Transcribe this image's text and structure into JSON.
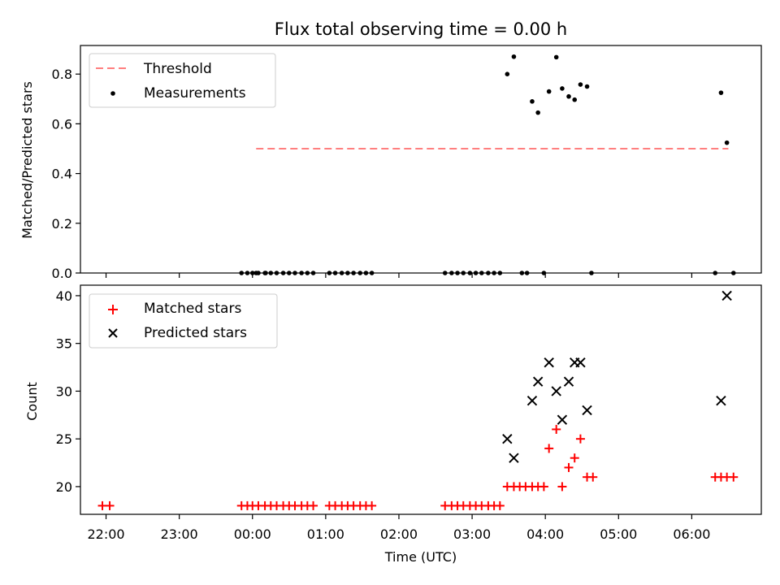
{
  "title": "Flux total observing time = 0.00 h",
  "chart_data": [
    {
      "type": "scatter",
      "ylabel": "Matched/Predicted stars",
      "ylim": [
        0,
        0.915
      ],
      "yticks": [
        "0.0",
        "0.2",
        "0.4",
        "0.6",
        "0.8"
      ],
      "xlim_hours": [
        -2.35,
        6.95
      ],
      "legend_position": "top-left",
      "threshold": {
        "name": "Threshold",
        "value": 0.5,
        "x_range": [
          0.05,
          6.5
        ],
        "color": "#ff7f7f",
        "dashed": true
      },
      "series": [
        {
          "name": "Measurements",
          "color": "#000000",
          "points": [
            [
              0.05,
              0
            ],
            [
              0.18,
              0
            ],
            [
              -0.15,
              0
            ],
            [
              -0.07,
              0
            ],
            [
              0.0,
              0
            ],
            [
              0.08,
              0
            ],
            [
              0.17,
              0
            ],
            [
              0.25,
              0
            ],
            [
              0.33,
              0
            ],
            [
              0.42,
              0
            ],
            [
              0.5,
              0
            ],
            [
              0.58,
              0
            ],
            [
              0.67,
              0
            ],
            [
              0.75,
              0
            ],
            [
              0.83,
              0
            ],
            [
              1.05,
              0
            ],
            [
              1.13,
              0
            ],
            [
              1.22,
              0
            ],
            [
              1.3,
              0
            ],
            [
              1.38,
              0
            ],
            [
              1.47,
              0
            ],
            [
              1.55,
              0
            ],
            [
              1.63,
              0
            ],
            [
              2.63,
              0
            ],
            [
              2.72,
              0
            ],
            [
              2.8,
              0
            ],
            [
              2.88,
              0
            ],
            [
              2.97,
              0
            ],
            [
              3.05,
              0
            ],
            [
              3.13,
              0
            ],
            [
              3.22,
              0
            ],
            [
              3.3,
              0
            ],
            [
              3.38,
              0
            ],
            [
              3.68,
              0
            ],
            [
              3.75,
              0
            ],
            [
              3.98,
              0
            ],
            [
              4.63,
              0
            ],
            [
              6.32,
              0
            ],
            [
              6.57,
              0
            ],
            [
              3.48,
              0.8
            ],
            [
              3.57,
              0.87
            ],
            [
              3.82,
              0.69
            ],
            [
              3.9,
              0.645
            ],
            [
              4.05,
              0.73
            ],
            [
              4.15,
              0.868
            ],
            [
              4.23,
              0.742
            ],
            [
              4.32,
              0.71
            ],
            [
              4.4,
              0.697
            ],
            [
              4.48,
              0.758
            ],
            [
              4.57,
              0.75
            ],
            [
              6.4,
              0.725
            ],
            [
              6.48,
              0.524
            ]
          ]
        }
      ]
    },
    {
      "type": "scatter",
      "xlabel": "Time (UTC)",
      "ylabel": "Count",
      "ylim": [
        17.1,
        41.1
      ],
      "yticks": [
        "20",
        "25",
        "30",
        "35",
        "40"
      ],
      "xlim_hours": [
        -2.35,
        6.95
      ],
      "legend_position": "top-left",
      "xticks": [
        {
          "label": "22:00",
          "hour": -2
        },
        {
          "label": "23:00",
          "hour": -1
        },
        {
          "label": "00:00",
          "hour": 0
        },
        {
          "label": "01:00",
          "hour": 1
        },
        {
          "label": "02:00",
          "hour": 2
        },
        {
          "label": "03:00",
          "hour": 3
        },
        {
          "label": "04:00",
          "hour": 4
        },
        {
          "label": "05:00",
          "hour": 5
        },
        {
          "label": "06:00",
          "hour": 6
        }
      ],
      "series": [
        {
          "name": "Matched stars",
          "marker": "plus",
          "color": "#ff0000",
          "points": [
            [
              -2.05,
              18
            ],
            [
              -1.95,
              18
            ],
            [
              -0.15,
              18
            ],
            [
              -0.07,
              18
            ],
            [
              0.0,
              18
            ],
            [
              0.08,
              18
            ],
            [
              0.17,
              18
            ],
            [
              0.25,
              18
            ],
            [
              0.33,
              18
            ],
            [
              0.42,
              18
            ],
            [
              0.5,
              18
            ],
            [
              0.58,
              18
            ],
            [
              0.67,
              18
            ],
            [
              0.75,
              18
            ],
            [
              0.83,
              18
            ],
            [
              1.05,
              18
            ],
            [
              1.13,
              18
            ],
            [
              1.22,
              18
            ],
            [
              1.3,
              18
            ],
            [
              1.38,
              18
            ],
            [
              1.47,
              18
            ],
            [
              1.55,
              18
            ],
            [
              1.63,
              18
            ],
            [
              2.63,
              18
            ],
            [
              2.72,
              18
            ],
            [
              2.8,
              18
            ],
            [
              2.88,
              18
            ],
            [
              2.97,
              18
            ],
            [
              3.05,
              18
            ],
            [
              3.13,
              18
            ],
            [
              3.22,
              18
            ],
            [
              3.3,
              18
            ],
            [
              3.38,
              18
            ],
            [
              3.48,
              20
            ],
            [
              3.57,
              20
            ],
            [
              3.65,
              20
            ],
            [
              3.73,
              20
            ],
            [
              3.82,
              20
            ],
            [
              3.9,
              20
            ],
            [
              3.98,
              20
            ],
            [
              4.05,
              24
            ],
            [
              4.15,
              26
            ],
            [
              4.23,
              20
            ],
            [
              4.32,
              22
            ],
            [
              4.4,
              23
            ],
            [
              4.48,
              25
            ],
            [
              4.57,
              21
            ],
            [
              4.65,
              21
            ],
            [
              6.32,
              21
            ],
            [
              6.4,
              21
            ],
            [
              6.48,
              21
            ],
            [
              6.57,
              21
            ]
          ]
        },
        {
          "name": "Predicted stars",
          "marker": "x",
          "color": "#000000",
          "points": [
            [
              3.48,
              25
            ],
            [
              3.57,
              23
            ],
            [
              3.82,
              29
            ],
            [
              3.9,
              31
            ],
            [
              4.05,
              33
            ],
            [
              4.15,
              30
            ],
            [
              4.23,
              27
            ],
            [
              4.32,
              31
            ],
            [
              4.4,
              33
            ],
            [
              4.48,
              33
            ],
            [
              4.57,
              28
            ],
            [
              6.4,
              29
            ],
            [
              6.48,
              40
            ]
          ]
        }
      ]
    }
  ]
}
